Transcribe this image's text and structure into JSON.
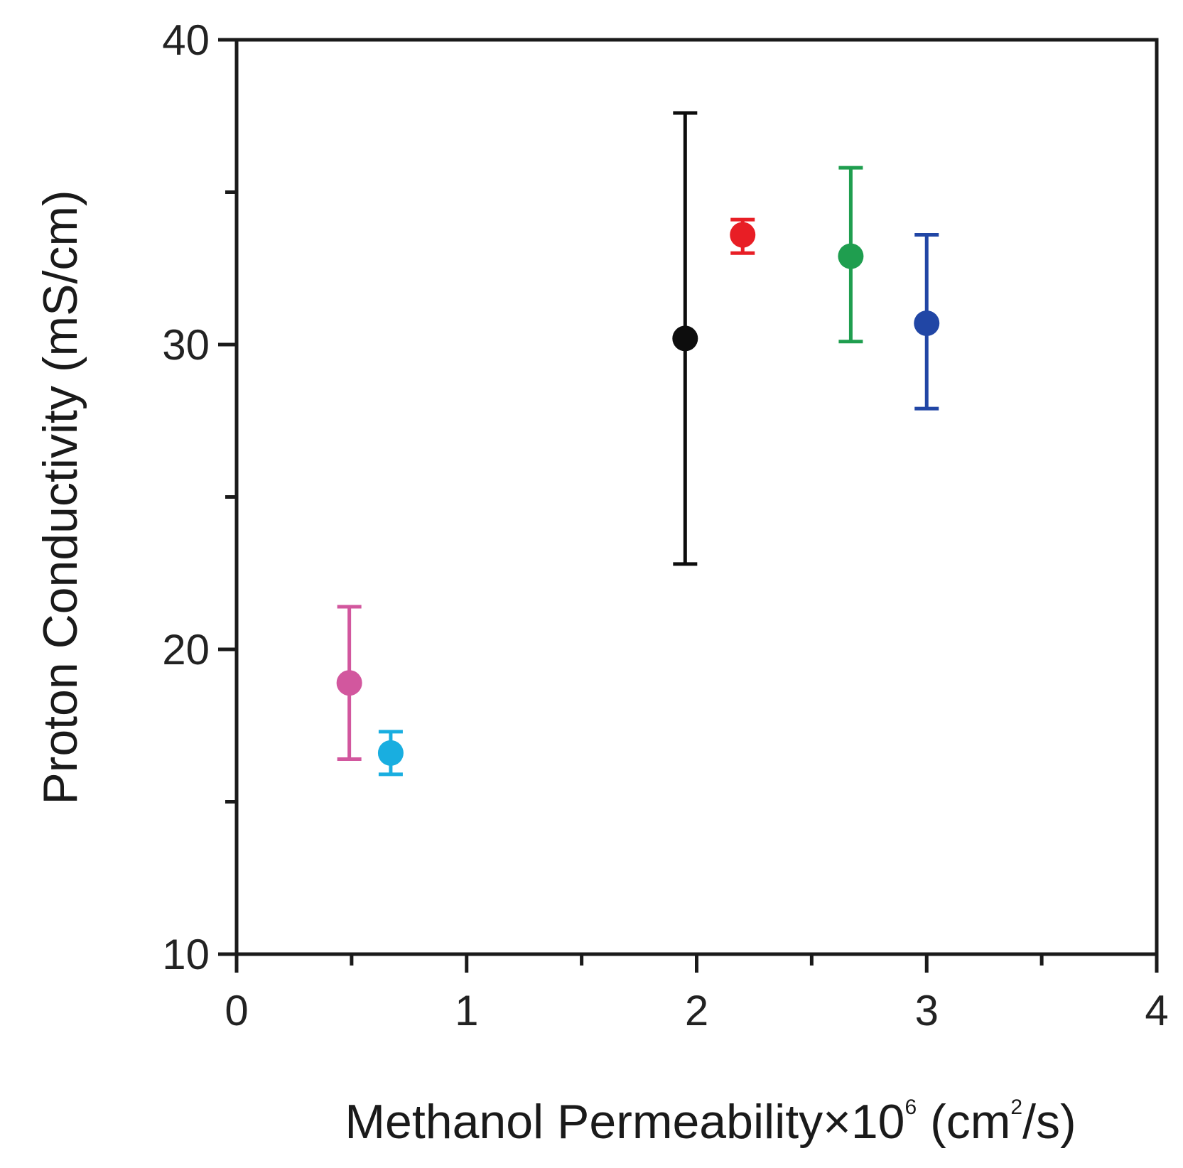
{
  "chart_data": {
    "type": "scatter",
    "title": "",
    "xlabel": {
      "prefix": "Methanol Permeability×10",
      "exponent": "6",
      "unit_open": " (cm",
      "unit_exponent": "2",
      "unit_close": "/s)"
    },
    "ylabel": "Proton Conductivity (mS/cm)",
    "xlim": [
      0,
      4
    ],
    "ylim": [
      10,
      40
    ],
    "x_ticks": [
      "0",
      "1",
      "2",
      "3",
      "4"
    ],
    "y_ticks": [
      "10",
      "20",
      "30",
      "40"
    ],
    "grid": false,
    "legend": "none",
    "points": [
      {
        "x": 0.49,
        "y": 18.9,
        "err_low": 16.4,
        "err_high": 21.4,
        "color": "#d2579e"
      },
      {
        "x": 0.67,
        "y": 16.6,
        "err_low": 15.9,
        "err_high": 17.3,
        "color": "#19aee0"
      },
      {
        "x": 1.95,
        "y": 30.2,
        "err_low": 22.8,
        "err_high": 37.6,
        "color": "#0d0d0d"
      },
      {
        "x": 2.2,
        "y": 33.6,
        "err_low": 33.0,
        "err_high": 34.1,
        "color": "#e81e25"
      },
      {
        "x": 2.67,
        "y": 32.9,
        "err_low": 30.1,
        "err_high": 35.8,
        "color": "#1f9e4f"
      },
      {
        "x": 3.0,
        "y": 30.7,
        "err_low": 27.9,
        "err_high": 33.6,
        "color": "#2146a5"
      }
    ]
  }
}
